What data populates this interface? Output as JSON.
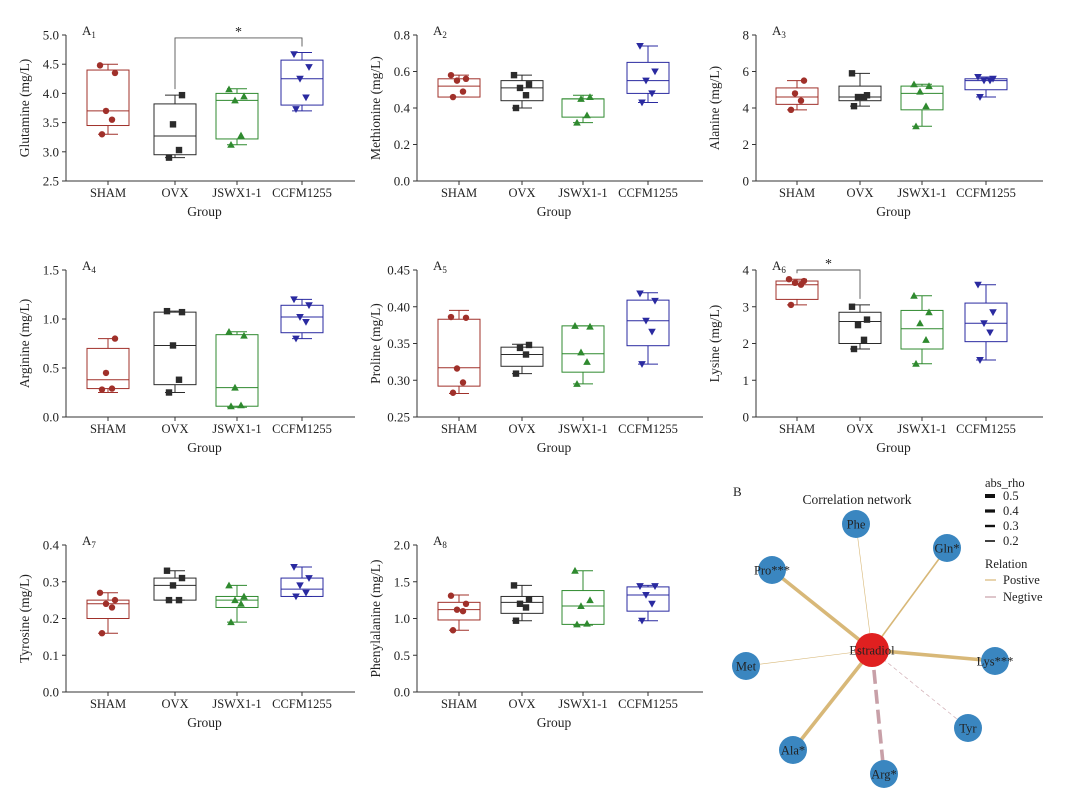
{
  "colors": {
    "sham": "#a0302a",
    "ovx": "#2b2b2b",
    "jswx": "#2f8a2f",
    "ccfm": "#2a2aa0",
    "node": "#3a86c0",
    "hub": "#e02020",
    "positive": "#d8b878",
    "negative": "#c8a0a8"
  },
  "chart_data": [
    {
      "type": "box",
      "panel": "A1",
      "panel_letter": "A",
      "panel_sub": "1",
      "ylabel": "Glutamine (mg/L)",
      "xlabel": "Group",
      "ylim": [
        2.5,
        5.0
      ],
      "yticks": [
        "2.5",
        "3.0",
        "3.5",
        "4.0",
        "4.5",
        "5.0"
      ],
      "categories": [
        "SHAM",
        "OVX",
        "JSWX1-1",
        "CCFM1255"
      ],
      "groups": [
        {
          "name": "SHAM",
          "whisker": [
            3.3,
            4.5
          ],
          "box": [
            3.45,
            4.4
          ],
          "median": 3.7,
          "points": [
            3.3,
            3.55,
            3.7,
            4.35,
            4.48
          ]
        },
        {
          "name": "OVX",
          "whisker": [
            2.9,
            3.97
          ],
          "box": [
            2.95,
            3.82
          ],
          "median": 3.27,
          "points": [
            2.9,
            3.03,
            3.47,
            3.97
          ]
        },
        {
          "name": "JSWX1-1",
          "whisker": [
            3.12,
            4.08
          ],
          "box": [
            3.22,
            4.0
          ],
          "median": 3.88,
          "points": [
            3.12,
            3.28,
            3.88,
            3.95,
            4.07
          ]
        },
        {
          "name": "CCFM1255",
          "whisker": [
            3.7,
            4.7
          ],
          "box": [
            3.8,
            4.57
          ],
          "median": 4.25,
          "points": [
            3.73,
            3.93,
            4.25,
            4.45,
            4.67
          ]
        }
      ],
      "significance": [
        {
          "from": "OVX",
          "to": "CCFM1255",
          "label": "*",
          "y": 4.95
        }
      ]
    },
    {
      "type": "box",
      "panel": "A2",
      "panel_letter": "A",
      "panel_sub": "2",
      "ylabel": "Methionine (mg/L)",
      "xlabel": "Group",
      "ylim": [
        0.0,
        0.8
      ],
      "yticks": [
        "0.0",
        "0.2",
        "0.4",
        "0.6",
        "0.8"
      ],
      "categories": [
        "SHAM",
        "OVX",
        "JSWX1-1",
        "CCFM1255"
      ],
      "groups": [
        {
          "name": "SHAM",
          "whisker": [
            0.46,
            0.58
          ],
          "box": [
            0.46,
            0.56
          ],
          "median": 0.52,
          "points": [
            0.46,
            0.49,
            0.55,
            0.56,
            0.58
          ]
        },
        {
          "name": "OVX",
          "whisker": [
            0.4,
            0.58
          ],
          "box": [
            0.44,
            0.55
          ],
          "median": 0.51,
          "points": [
            0.4,
            0.47,
            0.51,
            0.53,
            0.58
          ]
        },
        {
          "name": "JSWX1-1",
          "whisker": [
            0.32,
            0.47
          ],
          "box": [
            0.35,
            0.45
          ],
          "median": 0.45,
          "points": [
            0.32,
            0.36,
            0.45,
            0.46
          ]
        },
        {
          "name": "CCFM1255",
          "whisker": [
            0.43,
            0.74
          ],
          "box": [
            0.48,
            0.65
          ],
          "median": 0.55,
          "points": [
            0.43,
            0.48,
            0.55,
            0.6,
            0.74
          ]
        }
      ]
    },
    {
      "type": "box",
      "panel": "A3",
      "panel_letter": "A",
      "panel_sub": "3",
      "ylabel": "Alanine (mg/L)",
      "xlabel": "Group",
      "ylim": [
        0,
        8
      ],
      "yticks": [
        "0",
        "2",
        "4",
        "6",
        "8"
      ],
      "categories": [
        "SHAM",
        "OVX",
        "JSWX1-1",
        "CCFM1255"
      ],
      "groups": [
        {
          "name": "SHAM",
          "whisker": [
            3.9,
            5.5
          ],
          "box": [
            4.2,
            5.1
          ],
          "median": 4.6,
          "points": [
            3.9,
            4.4,
            4.8,
            5.5
          ]
        },
        {
          "name": "OVX",
          "whisker": [
            4.1,
            5.9
          ],
          "box": [
            4.4,
            5.2
          ],
          "median": 4.6,
          "points": [
            4.1,
            4.6,
            4.6,
            4.7,
            5.9
          ]
        },
        {
          "name": "JSWX1-1",
          "whisker": [
            3.0,
            5.3
          ],
          "box": [
            3.9,
            5.2
          ],
          "median": 4.8,
          "points": [
            3.0,
            4.1,
            4.9,
            5.2,
            5.3
          ]
        },
        {
          "name": "CCFM1255",
          "whisker": [
            4.6,
            5.7
          ],
          "box": [
            5.0,
            5.6
          ],
          "median": 5.5,
          "points": [
            4.6,
            5.5,
            5.5,
            5.6,
            5.7
          ]
        }
      ]
    },
    {
      "type": "box",
      "panel": "A4",
      "panel_letter": "A",
      "panel_sub": "4",
      "ylabel": "Arginine (mg/L)",
      "xlabel": "Group",
      "ylim": [
        0.0,
        1.5
      ],
      "yticks": [
        "0.0",
        "0.5",
        "1.0",
        "1.5"
      ],
      "categories": [
        "SHAM",
        "OVX",
        "JSWX1-1",
        "CCFM1255"
      ],
      "groups": [
        {
          "name": "SHAM",
          "whisker": [
            0.25,
            0.8
          ],
          "box": [
            0.29,
            0.7
          ],
          "median": 0.38,
          "points": [
            0.28,
            0.29,
            0.45,
            0.8
          ]
        },
        {
          "name": "OVX",
          "whisker": [
            0.25,
            1.08
          ],
          "box": [
            0.33,
            1.07
          ],
          "median": 0.73,
          "points": [
            0.25,
            0.38,
            0.73,
            1.07,
            1.08
          ]
        },
        {
          "name": "JSWX1-1",
          "whisker": [
            0.1,
            0.87
          ],
          "box": [
            0.11,
            0.84
          ],
          "median": 0.3,
          "points": [
            0.11,
            0.12,
            0.3,
            0.83,
            0.87
          ]
        },
        {
          "name": "CCFM1255",
          "whisker": [
            0.8,
            1.2
          ],
          "box": [
            0.86,
            1.14
          ],
          "median": 1.02,
          "points": [
            0.8,
            0.97,
            1.02,
            1.14,
            1.2
          ]
        }
      ]
    },
    {
      "type": "box",
      "panel": "A5",
      "panel_letter": "A",
      "panel_sub": "5",
      "ylabel": "Proline (mg/L)",
      "xlabel": "Group",
      "ylim": [
        0.25,
        0.45
      ],
      "yticks": [
        "0.25",
        "0.30",
        "0.35",
        "0.40",
        "0.45"
      ],
      "categories": [
        "SHAM",
        "OVX",
        "JSWX1-1",
        "CCFM1255"
      ],
      "groups": [
        {
          "name": "SHAM",
          "whisker": [
            0.282,
            0.395
          ],
          "box": [
            0.292,
            0.383
          ],
          "median": 0.317,
          "points": [
            0.283,
            0.297,
            0.316,
            0.385,
            0.386
          ]
        },
        {
          "name": "OVX",
          "whisker": [
            0.309,
            0.349
          ],
          "box": [
            0.319,
            0.345
          ],
          "median": 0.335,
          "points": [
            0.309,
            0.335,
            0.344,
            0.348
          ]
        },
        {
          "name": "JSWX1-1",
          "whisker": [
            0.295,
            0.374
          ],
          "box": [
            0.311,
            0.374
          ],
          "median": 0.336,
          "points": [
            0.295,
            0.325,
            0.338,
            0.373,
            0.374
          ]
        },
        {
          "name": "CCFM1255",
          "whisker": [
            0.322,
            0.419
          ],
          "box": [
            0.347,
            0.409
          ],
          "median": 0.381,
          "points": [
            0.322,
            0.366,
            0.381,
            0.408,
            0.418
          ]
        }
      ]
    },
    {
      "type": "box",
      "panel": "A6",
      "panel_letter": "A",
      "panel_sub": "6",
      "ylabel": "Lysine (mg/L)",
      "xlabel": "Group",
      "ylim": [
        0,
        4
      ],
      "yticks": [
        "0",
        "1",
        "2",
        "3",
        "4"
      ],
      "categories": [
        "SHAM",
        "OVX",
        "JSWX1-1",
        "CCFM1255"
      ],
      "groups": [
        {
          "name": "SHAM",
          "whisker": [
            3.05,
            3.75
          ],
          "box": [
            3.2,
            3.7
          ],
          "median": 3.6,
          "points": [
            3.05,
            3.6,
            3.65,
            3.7,
            3.75
          ]
        },
        {
          "name": "OVX",
          "whisker": [
            1.85,
            3.05
          ],
          "box": [
            2.0,
            2.85
          ],
          "median": 2.6,
          "points": [
            1.85,
            2.1,
            2.5,
            2.65,
            3.0
          ]
        },
        {
          "name": "JSWX1-1",
          "whisker": [
            1.45,
            3.3
          ],
          "box": [
            1.85,
            2.9
          ],
          "median": 2.4,
          "points": [
            1.45,
            2.1,
            2.55,
            2.85,
            3.3
          ]
        },
        {
          "name": "CCFM1255",
          "whisker": [
            1.55,
            3.6
          ],
          "box": [
            2.05,
            3.1
          ],
          "median": 2.55,
          "points": [
            1.55,
            2.3,
            2.55,
            2.85,
            3.6
          ]
        }
      ],
      "significance": [
        {
          "from": "SHAM",
          "to": "OVX",
          "label": "*",
          "y": 4.0
        }
      ]
    },
    {
      "type": "box",
      "panel": "A7",
      "panel_letter": "A",
      "panel_sub": "7",
      "ylabel": "Tyrosine (mg/L)",
      "xlabel": "Group",
      "ylim": [
        0.0,
        0.4
      ],
      "yticks": [
        "0.0",
        "0.1",
        "0.2",
        "0.3",
        "0.4"
      ],
      "categories": [
        "SHAM",
        "OVX",
        "JSWX1-1",
        "CCFM1255"
      ],
      "groups": [
        {
          "name": "SHAM",
          "whisker": [
            0.16,
            0.27
          ],
          "box": [
            0.2,
            0.25
          ],
          "median": 0.24,
          "points": [
            0.16,
            0.23,
            0.24,
            0.25,
            0.27
          ]
        },
        {
          "name": "OVX",
          "whisker": [
            0.25,
            0.33
          ],
          "box": [
            0.25,
            0.31
          ],
          "median": 0.29,
          "points": [
            0.25,
            0.25,
            0.29,
            0.31,
            0.33
          ]
        },
        {
          "name": "JSWX1-1",
          "whisker": [
            0.19,
            0.29
          ],
          "box": [
            0.23,
            0.26
          ],
          "median": 0.25,
          "points": [
            0.19,
            0.24,
            0.25,
            0.26,
            0.29
          ]
        },
        {
          "name": "CCFM1255",
          "whisker": [
            0.26,
            0.34
          ],
          "box": [
            0.26,
            0.31
          ],
          "median": 0.28,
          "points": [
            0.26,
            0.27,
            0.29,
            0.31,
            0.34
          ]
        }
      ]
    },
    {
      "type": "box",
      "panel": "A8",
      "panel_letter": "A",
      "panel_sub": "8",
      "ylabel": "Phenylalanine (mg/L)",
      "xlabel": "Group",
      "ylim": [
        0.0,
        2.0
      ],
      "yticks": [
        "0.0",
        "0.5",
        "1.0",
        "1.5",
        "2.0"
      ],
      "categories": [
        "SHAM",
        "OVX",
        "JSWX1-1",
        "CCFM1255"
      ],
      "groups": [
        {
          "name": "SHAM",
          "whisker": [
            0.84,
            1.32
          ],
          "box": [
            0.98,
            1.22
          ],
          "median": 1.12,
          "points": [
            0.84,
            1.1,
            1.12,
            1.2,
            1.31
          ]
        },
        {
          "name": "OVX",
          "whisker": [
            0.97,
            1.45
          ],
          "box": [
            1.07,
            1.3
          ],
          "median": 1.22,
          "points": [
            0.97,
            1.15,
            1.2,
            1.26,
            1.45
          ]
        },
        {
          "name": "JSWX1-1",
          "whisker": [
            0.91,
            1.65
          ],
          "box": [
            0.92,
            1.38
          ],
          "median": 1.17,
          "points": [
            0.92,
            0.93,
            1.17,
            1.25,
            1.65
          ]
        },
        {
          "name": "CCFM1255",
          "whisker": [
            0.97,
            1.45
          ],
          "box": [
            1.1,
            1.43
          ],
          "median": 1.32,
          "points": [
            0.97,
            1.2,
            1.32,
            1.44,
            1.44
          ]
        }
      ]
    },
    {
      "type": "network",
      "panel": "B",
      "panel_letter": "B",
      "title": "Correlation network",
      "center": "Estradiol",
      "nodes": [
        {
          "label": "Phe",
          "rho": 0.2,
          "relation": "positive"
        },
        {
          "label": "Gln*",
          "rho": 0.3,
          "relation": "positive"
        },
        {
          "label": "Pro***",
          "rho": 0.5,
          "relation": "positive"
        },
        {
          "label": "Lys***",
          "rho": 0.5,
          "relation": "positive"
        },
        {
          "label": "Met",
          "rho": 0.2,
          "relation": "positive"
        },
        {
          "label": "Tyr",
          "rho": 0.2,
          "relation": "negative"
        },
        {
          "label": "Ala*",
          "rho": 0.5,
          "relation": "positive"
        },
        {
          "label": "Arg*",
          "rho": 0.5,
          "relation": "negative"
        }
      ],
      "legend": {
        "size_title": "abs_rho",
        "sizes": [
          "0.5",
          "0.4",
          "0.3",
          "0.2"
        ],
        "relation_title": "Relation",
        "relations": [
          "Postive",
          "Negtive"
        ]
      }
    }
  ]
}
